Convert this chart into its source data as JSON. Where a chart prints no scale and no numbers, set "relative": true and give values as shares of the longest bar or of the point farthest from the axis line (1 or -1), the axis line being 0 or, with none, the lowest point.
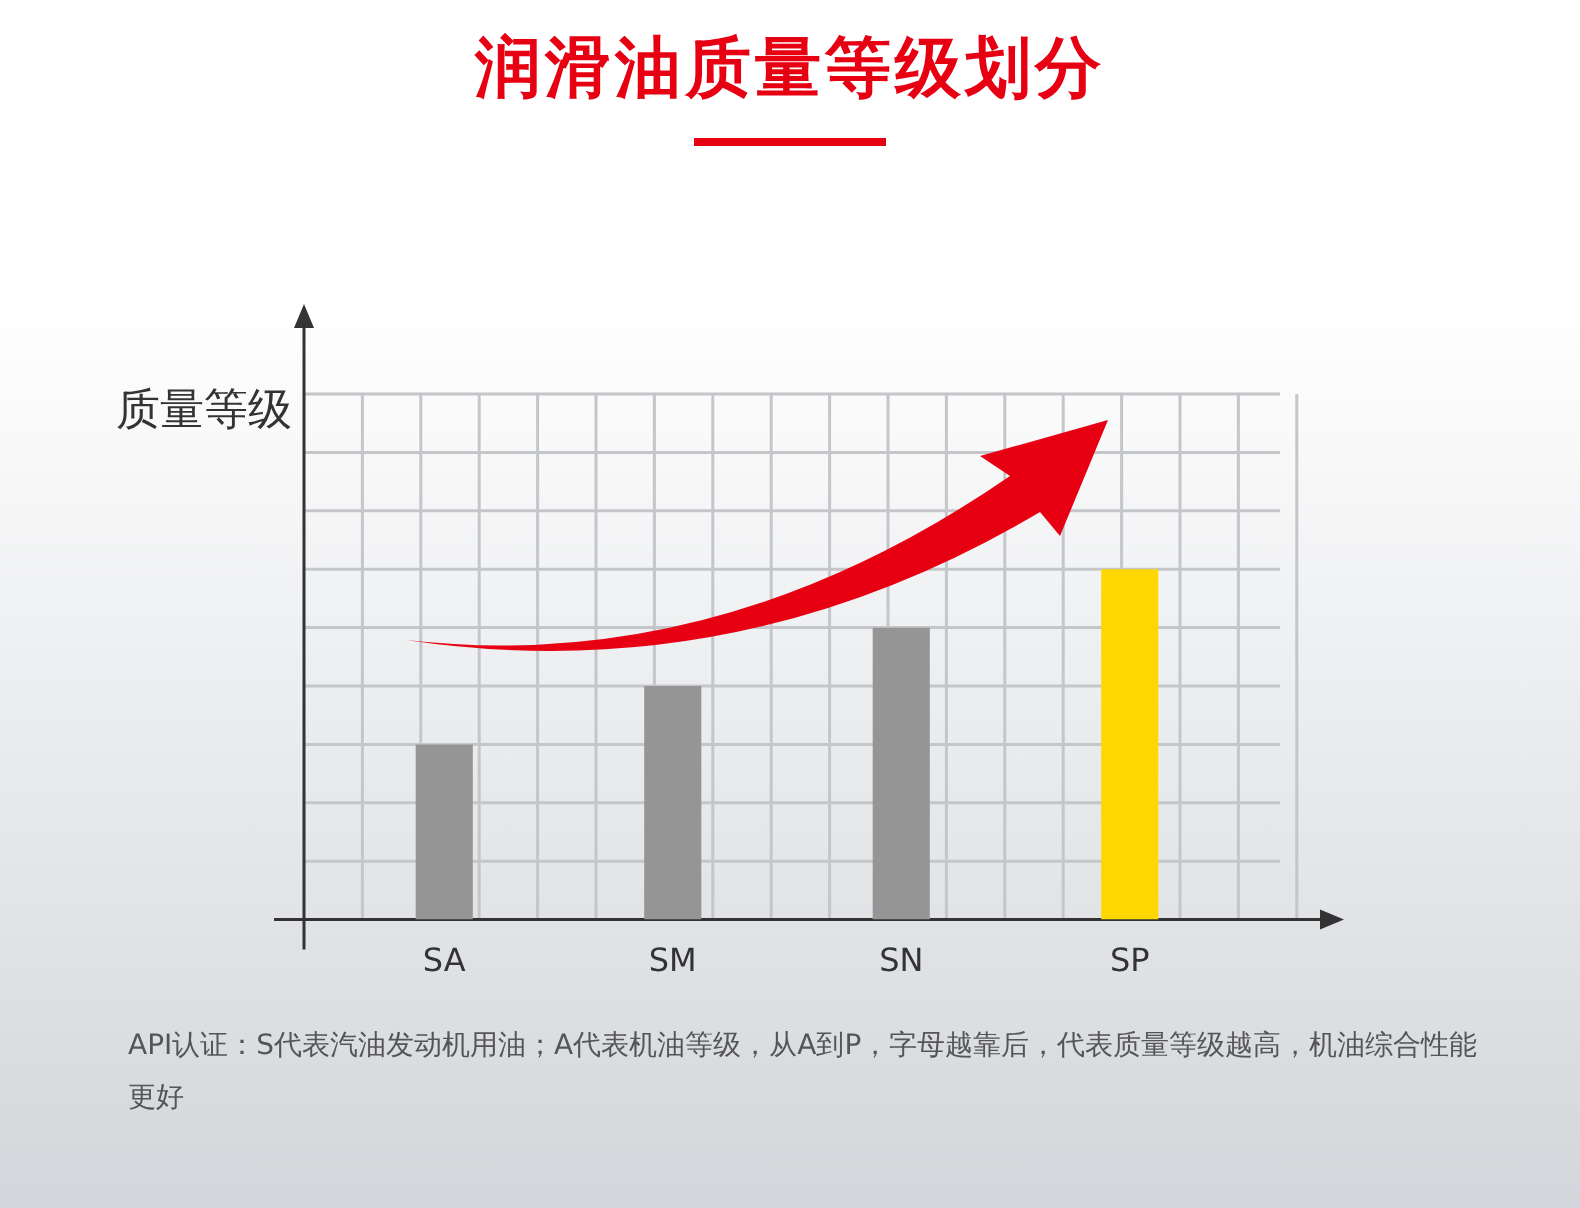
{
  "chart_data": {
    "type": "bar",
    "title": "润滑油质量等级划分",
    "ylabel": "质量等级",
    "categories": [
      "SA",
      "SM",
      "SN",
      "SP"
    ],
    "values": [
      0.5,
      0.667,
      0.833,
      1
    ],
    "colors": [
      "#959595",
      "#959595",
      "#959595",
      "#ffd700"
    ],
    "relative": true,
    "grid": true,
    "legend": false,
    "annotations": [
      "API认证：S代表汽油发动机用油；A代表机油等级，从A到P，字母越靠后，代表质量等级越高，机油综合性能更好"
    ]
  }
}
